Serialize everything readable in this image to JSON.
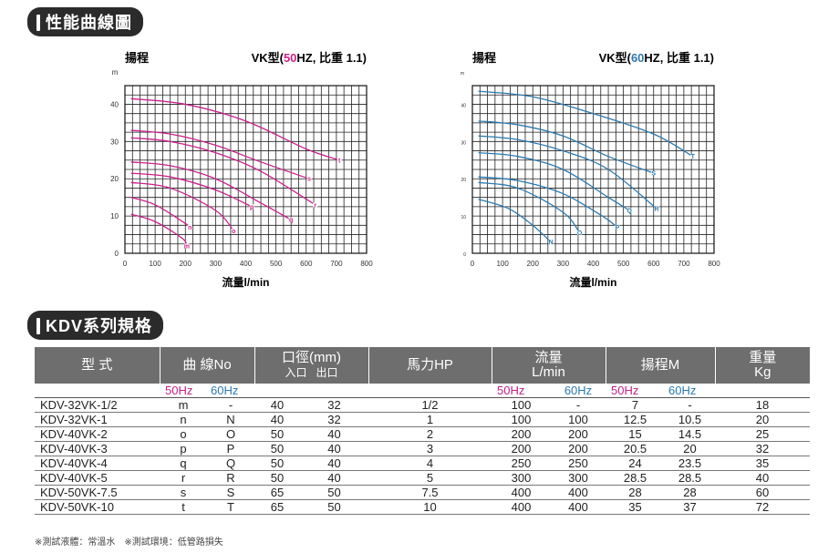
{
  "section1_title": "性能曲線圖",
  "section2_title": "KDV系列規格",
  "chart_data": [
    {
      "type": "line",
      "title_left": "揚程",
      "title_right_prefix": "VK型(",
      "title_right_hz": "50",
      "title_right_suffix": "HZ, 比重 1.1)",
      "hz_color": "#d21f8a",
      "line_color": "#cc1f8c",
      "y_unit": "m",
      "xlabel": "流量l/min",
      "xlim": [
        0,
        800
      ],
      "ylim": [
        0,
        45
      ],
      "x_ticks": [
        0,
        100,
        200,
        300,
        400,
        500,
        600,
        700,
        800
      ],
      "y_ticks": [
        0,
        10,
        20,
        30,
        40
      ],
      "grid": true,
      "series": [
        {
          "name": "t",
          "x": [
            20,
            200,
            400,
            600,
            710
          ],
          "y": [
            41.5,
            40,
            35.5,
            28,
            25
          ]
        },
        {
          "name": "s",
          "x": [
            20,
            150,
            300,
            450,
            610
          ],
          "y": [
            33,
            32,
            29,
            24.5,
            20
          ]
        },
        {
          "name": "r",
          "x": [
            20,
            150,
            300,
            450,
            630
          ],
          "y": [
            31,
            30,
            27,
            22,
            13
          ]
        },
        {
          "name": "q",
          "x": [
            20,
            150,
            300,
            450,
            550
          ],
          "y": [
            24.5,
            23.5,
            20,
            13.5,
            9
          ]
        },
        {
          "name": "p",
          "x": [
            20,
            150,
            300,
            420
          ],
          "y": [
            21.5,
            20.5,
            17,
            12.5
          ]
        },
        {
          "name": "o",
          "x": [
            20,
            150,
            300,
            360
          ],
          "y": [
            19,
            17.5,
            11.5,
            6
          ]
        },
        {
          "name": "n",
          "x": [
            20,
            100,
            200,
            215
          ],
          "y": [
            15,
            13,
            8,
            7
          ]
        },
        {
          "name": "m",
          "x": [
            20,
            100,
            190,
            205
          ],
          "y": [
            10.5,
            8.5,
            4,
            2
          ]
        }
      ]
    },
    {
      "type": "line",
      "title_left": "揚程",
      "title_right_prefix": "VK型(",
      "title_right_hz": "60",
      "title_right_suffix": "HZ, 比重 1.1)",
      "hz_color": "#2a7ab0",
      "line_color": "#2a7ab0",
      "y_unit": "m",
      "xlabel": "流量l/min",
      "xlim": [
        0,
        800
      ],
      "ylim": [
        0,
        45
      ],
      "x_ticks": [
        0,
        100,
        200,
        300,
        400,
        500,
        600,
        700,
        800
      ],
      "y_ticks": [
        0,
        10,
        20,
        30,
        40
      ],
      "grid": true,
      "series": [
        {
          "name": "T",
          "x": [
            20,
            200,
            400,
            600,
            730
          ],
          "y": [
            43.5,
            42,
            37.5,
            32,
            26
          ]
        },
        {
          "name": "S",
          "x": [
            20,
            150,
            300,
            450,
            600
          ],
          "y": [
            35.5,
            34.5,
            31.5,
            26,
            21.5
          ]
        },
        {
          "name": "R",
          "x": [
            20,
            150,
            300,
            450,
            610
          ],
          "y": [
            31.5,
            30.5,
            27.5,
            22.5,
            12
          ]
        },
        {
          "name": "Q",
          "x": [
            20,
            150,
            300,
            450,
            520
          ],
          "y": [
            27,
            26,
            22.5,
            15,
            11.5
          ]
        },
        {
          "name": "P",
          "x": [
            20,
            150,
            300,
            430,
            480
          ],
          "y": [
            20.5,
            19.5,
            16,
            10,
            7
          ]
        },
        {
          "name": "O",
          "x": [
            20,
            150,
            300,
            355
          ],
          "y": [
            19,
            17.5,
            11,
            5.5
          ]
        },
        {
          "name": "N",
          "x": [
            20,
            120,
            200,
            260
          ],
          "y": [
            14.5,
            12,
            7.5,
            3
          ]
        }
      ]
    }
  ],
  "table": {
    "headers": [
      "型 式",
      "曲 線No",
      "口徑(mm)",
      "馬力HP",
      "流量",
      "揚程M",
      "重量"
    ],
    "header_sub": {
      "bore_in": "入口",
      "bore_out": "出口",
      "flow_unit": "L/min",
      "weight_unit": "Kg"
    },
    "hz50": "50Hz",
    "hz60": "60Hz",
    "rows": [
      [
        "KDV-32VK-1/2",
        "m",
        "-",
        "40",
        "32",
        "1/2",
        "100",
        "-",
        "7",
        "-",
        "18"
      ],
      [
        "KDV-32VK-1",
        "n",
        "N",
        "40",
        "32",
        "1",
        "100",
        "100",
        "12.5",
        "10.5",
        "20"
      ],
      [
        "KDV-40VK-2",
        "o",
        "O",
        "50",
        "40",
        "2",
        "200",
        "200",
        "15",
        "14.5",
        "25"
      ],
      [
        "KDV-40VK-3",
        "p",
        "P",
        "50",
        "40",
        "3",
        "200",
        "200",
        "20.5",
        "20",
        "32"
      ],
      [
        "KDV-40VK-4",
        "q",
        "Q",
        "50",
        "40",
        "4",
        "250",
        "250",
        "24",
        "23.5",
        "35"
      ],
      [
        "KDV-40VK-5",
        "r",
        "R",
        "50",
        "40",
        "5",
        "300",
        "300",
        "28.5",
        "28.5",
        "40"
      ],
      [
        "KDV-50VK-7.5",
        "s",
        "S",
        "65",
        "50",
        "7.5",
        "400",
        "400",
        "28",
        "28",
        "60"
      ],
      [
        "KDV-50VK-10",
        "t",
        "T",
        "65",
        "50",
        "10",
        "400",
        "400",
        "35",
        "37",
        "72"
      ]
    ]
  },
  "note": "※測試液體：常溫水　※測試環境：低管路損失"
}
